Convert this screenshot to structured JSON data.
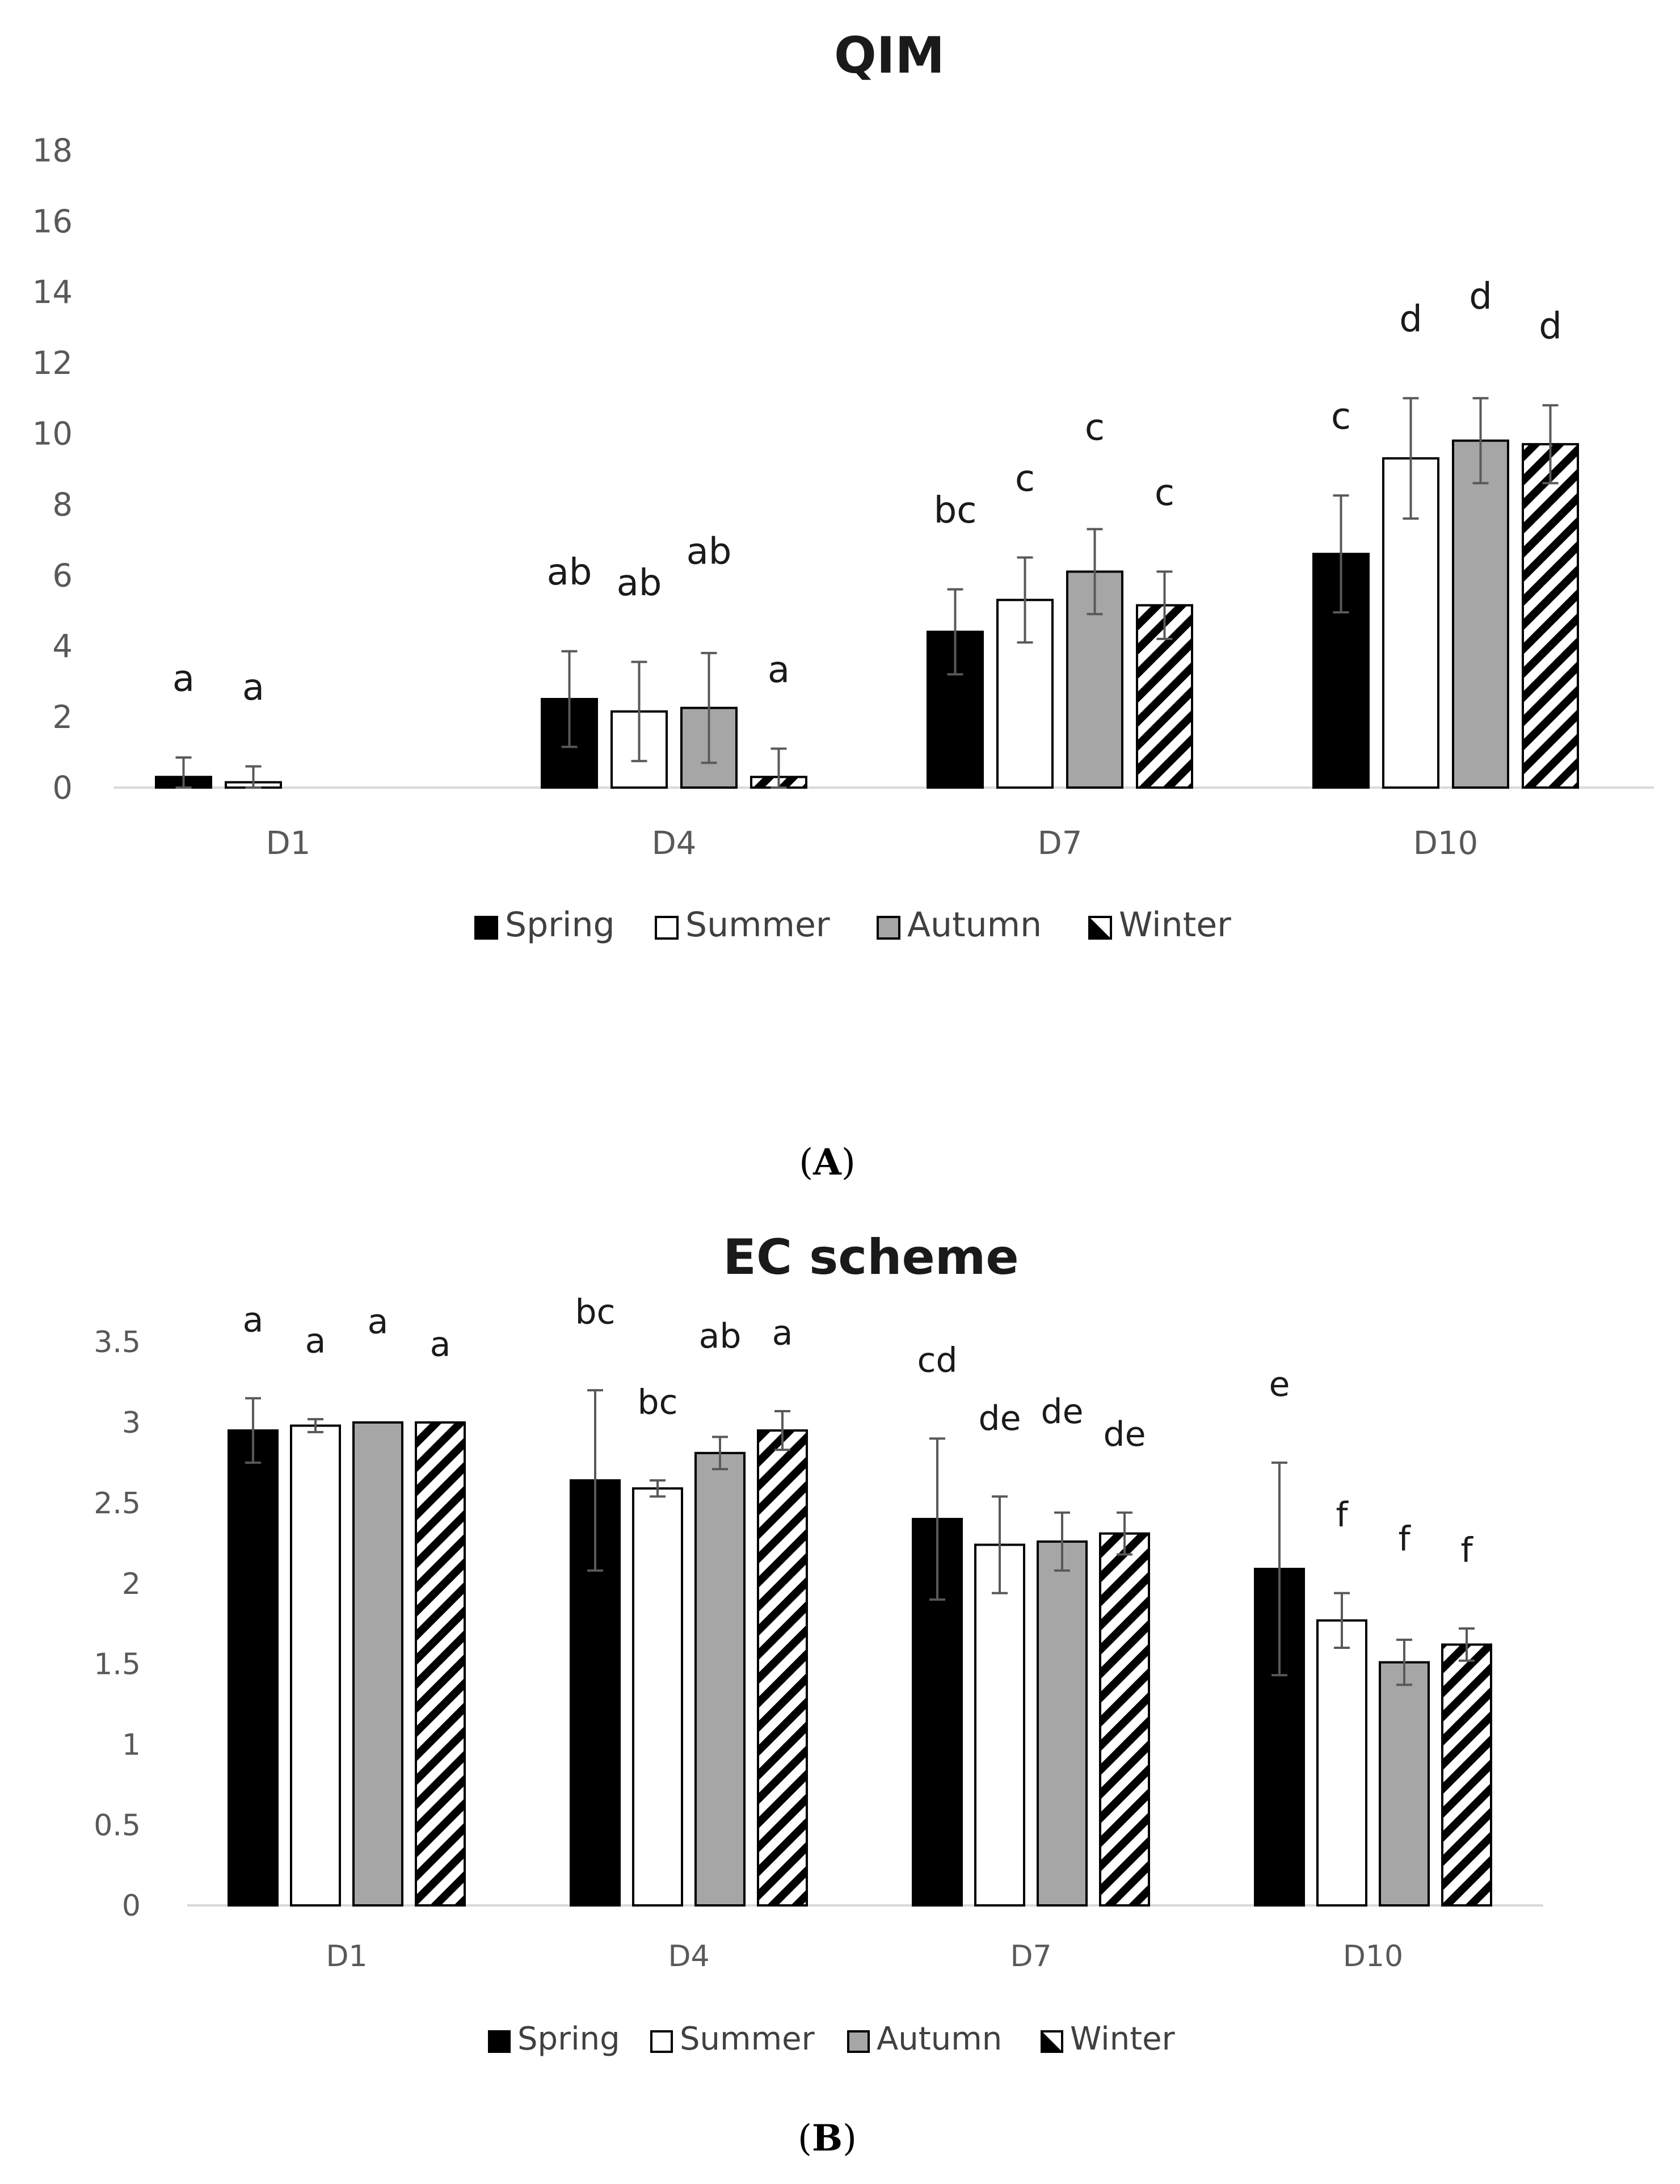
{
  "colors": {
    "Spring": "#000000",
    "Summer": "#ffffff",
    "Autumn": "#a6a6a6",
    "Winter": "hatch",
    "axis": "#d9d9d9",
    "errorbar": "#595959"
  },
  "chart_data": [
    {
      "type": "bar",
      "panel_label": "A",
      "title": "QIM",
      "categories": [
        "D1",
        "D4",
        "D7",
        "D10"
      ],
      "ylim": [
        0,
        18
      ],
      "yticks": [
        "0",
        "2",
        "4",
        "6",
        "8",
        "10",
        "12",
        "14",
        "16",
        "18"
      ],
      "ytick_values": [
        0,
        2,
        4,
        6,
        8,
        10,
        12,
        14,
        16,
        18
      ],
      "legend": [
        "Spring",
        "Summer",
        "Autumn",
        "Winter"
      ],
      "legend_position": "bottom",
      "series": [
        {
          "name": "Spring",
          "values": [
            0.3,
            2.5,
            4.4,
            6.6
          ],
          "errors": [
            0.55,
            1.35,
            1.2,
            1.65
          ],
          "labels": [
            "a",
            "ab",
            "bc",
            "c"
          ]
        },
        {
          "name": "Summer",
          "values": [
            0.15,
            2.15,
            5.3,
            9.3
          ],
          "errors": [
            0.45,
            1.4,
            1.2,
            1.7
          ],
          "labels": [
            "a",
            "ab",
            "c",
            "d"
          ]
        },
        {
          "name": "Autumn",
          "values": [
            0,
            2.25,
            6.1,
            9.8
          ],
          "errors": [
            0,
            1.55,
            1.2,
            1.2
          ],
          "labels": [
            "",
            "ab",
            "c",
            "d"
          ]
        },
        {
          "name": "Winter",
          "values": [
            0,
            0.3,
            5.15,
            9.7
          ],
          "errors": [
            0,
            0.8,
            0.95,
            1.1
          ],
          "labels": [
            "",
            "a",
            "c",
            "d"
          ]
        }
      ]
    },
    {
      "type": "bar",
      "panel_label": "B",
      "title": "EC scheme",
      "categories": [
        "D1",
        "D4",
        "D7",
        "D10"
      ],
      "ylim": [
        0,
        3.5
      ],
      "yticks": [
        "0",
        "0.5",
        "1",
        "1.5",
        "2",
        "2.5",
        "3",
        "3.5"
      ],
      "ytick_values": [
        0,
        0.5,
        1,
        1.5,
        2,
        2.5,
        3,
        3.5
      ],
      "legend": [
        "Spring",
        "Summer",
        "Autumn",
        "Winter"
      ],
      "legend_position": "bottom",
      "series": [
        {
          "name": "Spring",
          "values": [
            2.95,
            2.64,
            2.4,
            2.09
          ],
          "errors": [
            0.2,
            0.56,
            0.5,
            0.66
          ],
          "labels": [
            "a",
            "bc",
            "cd",
            "e"
          ]
        },
        {
          "name": "Summer",
          "values": [
            2.98,
            2.59,
            2.24,
            1.77
          ],
          "errors": [
            0.04,
            0.05,
            0.3,
            0.17
          ],
          "labels": [
            "a",
            "bc",
            "de",
            "f"
          ]
        },
        {
          "name": "Autumn",
          "values": [
            3.0,
            2.81,
            2.26,
            1.51
          ],
          "errors": [
            0.0,
            0.1,
            0.18,
            0.14
          ],
          "labels": [
            "a",
            "ab",
            "de",
            "f"
          ]
        },
        {
          "name": "Winter",
          "values": [
            3.0,
            2.95,
            2.31,
            1.62
          ],
          "errors": [
            0.0,
            0.12,
            0.13,
            0.1
          ],
          "labels": [
            "a",
            "a",
            "de",
            "f"
          ]
        }
      ]
    }
  ]
}
